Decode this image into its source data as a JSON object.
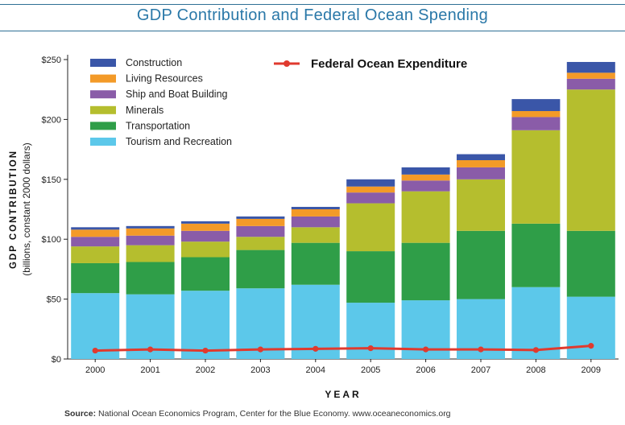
{
  "page": {
    "title": "GDP Contribution and Federal Ocean Spending",
    "source_label": "Source:",
    "source_text": "National Ocean Economics Program, Center for the Blue Economy. www.oceaneconomics.org"
  },
  "colors": {
    "title": "#2a78a8",
    "Construction": "#3a56a8",
    "Living Resources": "#f39a28",
    "Ship and Boat Building": "#8a5ca8",
    "Minerals": "#b5be2e",
    "Transportation": "#2f9e48",
    "Tourism and Recreation": "#5cc8ea",
    "Federal Ocean Expenditure": "#e03a2e"
  },
  "chart_data": {
    "type": "bar",
    "stacked": true,
    "title": "",
    "xlabel": "YEAR",
    "ylabel": "GDP CONTRIBUTION",
    "ylabel_sub": "(billions, constant 2000 dollars)",
    "ylim": [
      0,
      250
    ],
    "yticks": [
      "$0",
      "$50",
      "$100",
      "$150",
      "$200",
      "$250"
    ],
    "grid": false,
    "legend_position": "top-left",
    "categories": [
      "2000",
      "2001",
      "2002",
      "2003",
      "2004",
      "2005",
      "2006",
      "2007",
      "2008",
      "2009"
    ],
    "series": [
      {
        "name": "Tourism and Recreation",
        "values": [
          55,
          54,
          57,
          59,
          62,
          47,
          49,
          50,
          60,
          52
        ]
      },
      {
        "name": "Transportation",
        "values": [
          25,
          27,
          28,
          32,
          35,
          43,
          48,
          57,
          53,
          55
        ]
      },
      {
        "name": "Minerals",
        "values": [
          14,
          14,
          13,
          11,
          13,
          40,
          43,
          43,
          78,
          118
        ]
      },
      {
        "name": "Ship and Boat Building",
        "values": [
          8,
          8,
          9,
          9,
          9,
          9,
          9,
          10,
          11,
          9
        ]
      },
      {
        "name": "Living Resources",
        "values": [
          6,
          6,
          6,
          6,
          6,
          5,
          5,
          6,
          5,
          5
        ]
      },
      {
        "name": "Construction",
        "values": [
          2,
          2,
          2,
          2,
          2,
          6,
          6,
          5,
          10,
          9
        ]
      }
    ],
    "line_series": {
      "name": "Federal Ocean Expenditure",
      "values": [
        7,
        8,
        7,
        8,
        8.5,
        9,
        8,
        8,
        7.5,
        11
      ]
    }
  }
}
